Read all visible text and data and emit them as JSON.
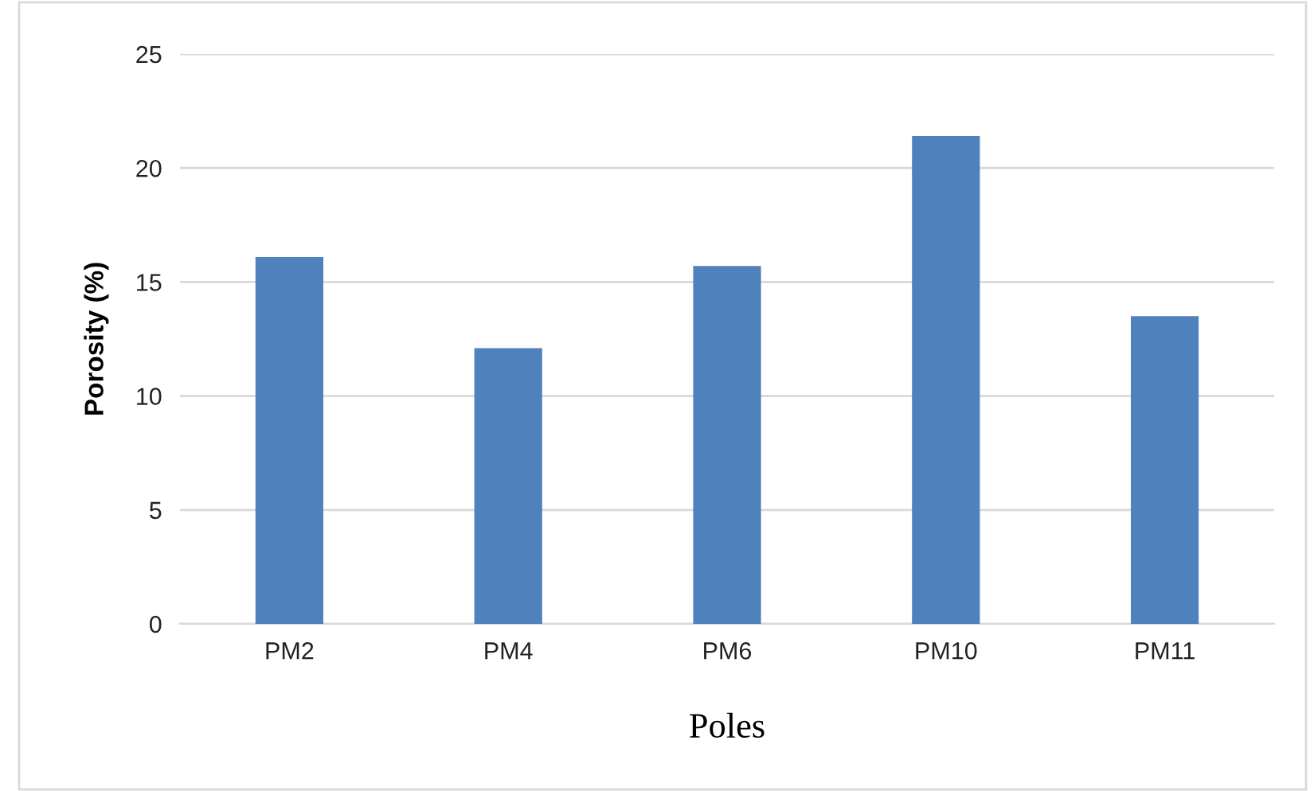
{
  "chart_data": {
    "type": "bar",
    "xlabel": "Poles",
    "ylabel": "Porosity (%)",
    "categories": [
      "PM2",
      "PM4",
      "PM6",
      "PM10",
      "PM11"
    ],
    "values": [
      16.1,
      12.1,
      15.7,
      21.4,
      13.5
    ],
    "color": "#4f81bd",
    "ylim": [
      0,
      25
    ],
    "yticks": [
      0,
      5,
      10,
      15,
      20,
      25
    ],
    "grid": "y",
    "legend": false
  }
}
